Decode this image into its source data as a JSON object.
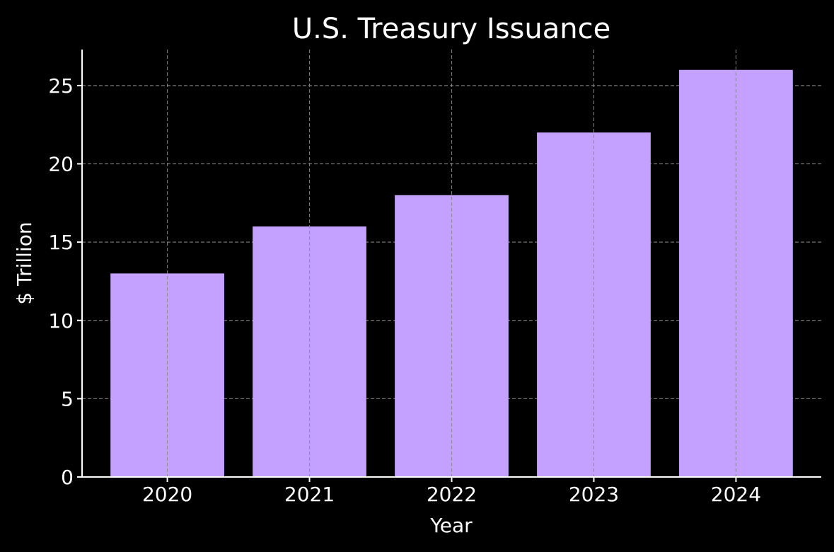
{
  "chart_data": {
    "type": "bar",
    "title": "U.S. Treasury Issuance",
    "xlabel": "Year",
    "ylabel": "$ Trillion",
    "categories": [
      "2020",
      "2021",
      "2022",
      "2023",
      "2024"
    ],
    "values": [
      13,
      16,
      18,
      22,
      26
    ],
    "ylim": [
      0,
      27.3
    ],
    "yticks": [
      0,
      5,
      10,
      15,
      20,
      25
    ],
    "grid": true,
    "bar_color": "#c4a1ff",
    "background_color": "#000000",
    "text_color": "#ffffff"
  }
}
